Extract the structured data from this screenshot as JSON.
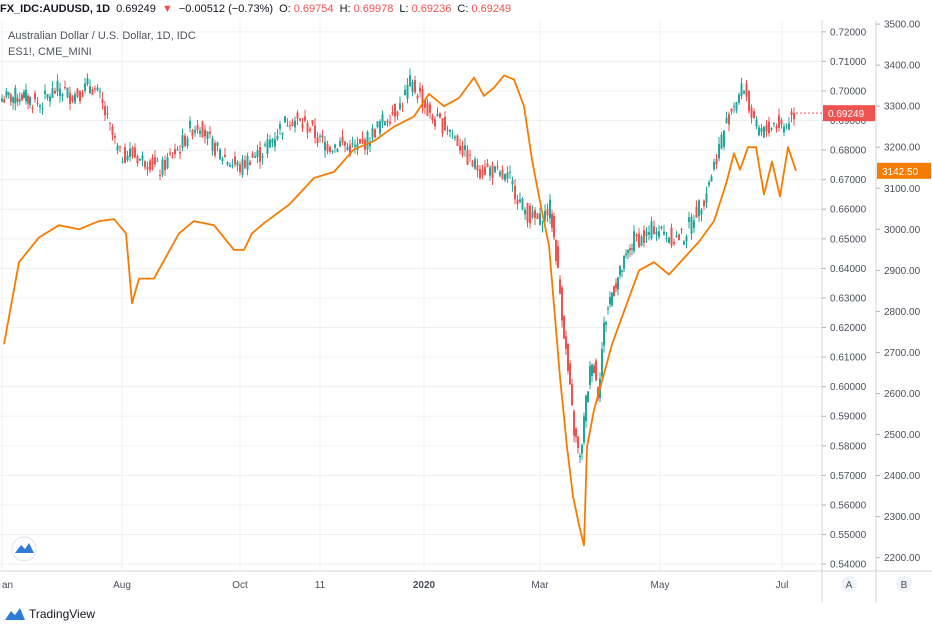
{
  "header": {
    "symbol": "FX_IDC:AUDUSD, 1D",
    "last": "0.69249",
    "change": "−0.00512 (−0.73%)",
    "open_label": "O:",
    "open": "0.69754",
    "high_label": "H:",
    "high": "0.69978",
    "low_label": "L:",
    "low": "0.69236",
    "close_label": "C:",
    "close": "0.69249",
    "down_arrow": "▼"
  },
  "legend": {
    "main": "Australian Dollar / U.S. Dollar, 1D, IDC",
    "compare": "ES1!, CME_MINI"
  },
  "brand": {
    "name": "TradingView"
  },
  "scale_buttons": [
    "A",
    "B"
  ],
  "colors": {
    "up": "#26a69a",
    "down": "#ef5350",
    "es_line": "#f57c00",
    "grid": "#eef0f4",
    "axis_text": "#4a4f5c"
  },
  "chart_data": {
    "type": "line",
    "title": "Australian Dollar / U.S. Dollar, 1D, IDC",
    "x_tick_labels": [
      "an",
      "Aug",
      "Oct",
      "11",
      "2020",
      "Mar",
      "May",
      "Jul"
    ],
    "left_axis": {
      "label": "AUDUSD",
      "ticks": [
        "0.72000",
        "0.71000",
        "0.70000",
        "0.69000",
        "0.68000",
        "0.67000",
        "0.66000",
        "0.65000",
        "0.64000",
        "0.63000",
        "0.62000",
        "0.61000",
        "0.60000",
        "0.59000",
        "0.58000",
        "0.57000",
        "0.56000",
        "0.55000",
        "0.54000"
      ],
      "ylim": [
        0.538,
        0.724
      ],
      "last_value_label": "0.69249"
    },
    "right_axis": {
      "label": "ES1!",
      "ticks": [
        "3500.00",
        "3400.00",
        "3300.00",
        "3200.00",
        "3100.00",
        "3000.00",
        "2900.00",
        "2800.00",
        "2700.00",
        "2600.00",
        "2500.00",
        "2400.00",
        "2300.00",
        "2200.00"
      ],
      "ylim": [
        2170,
        3510
      ],
      "last_value_label": "3142.50"
    },
    "series": [
      {
        "name": "Australian Dollar / U.S. Dollar, 1D, IDC",
        "style": "candles",
        "months": [
          "2019-06",
          "2019-07",
          "2019-08",
          "2019-09",
          "2019-10",
          "2019-11",
          "2019-12",
          "2020-01",
          "2020-02",
          "2020-03",
          "2020-04",
          "2020-05",
          "2020-06",
          "2020-07"
        ],
        "x": [
          0,
          20,
          28,
          38,
          48,
          58,
          68,
          78,
          88,
          98,
          108,
          118,
          128,
          138,
          148,
          158,
          168,
          178,
          188,
          198,
          208,
          218,
          228,
          238,
          248,
          258,
          268,
          278,
          288,
          298,
          308,
          318,
          328,
          338,
          348,
          358,
          368,
          378,
          388,
          398,
          408,
          418,
          428,
          438,
          448,
          458,
          468,
          478,
          488,
          498,
          508,
          518,
          528,
          538,
          548,
          554,
          560,
          566,
          572,
          578,
          584,
          590,
          596,
          602,
          608,
          614,
          620,
          626,
          632,
          642,
          652,
          662,
          672,
          682,
          692,
          702,
          712,
          722,
          732,
          742,
          752,
          762,
          772,
          782,
          792
        ],
        "close": [
          0.6975,
          0.6985,
          0.697,
          0.6955,
          0.699,
          0.701,
          0.6985,
          0.6995,
          0.7025,
          0.6975,
          0.687,
          0.678,
          0.679,
          0.677,
          0.676,
          0.673,
          0.6775,
          0.681,
          0.687,
          0.689,
          0.6825,
          0.679,
          0.676,
          0.674,
          0.6775,
          0.6785,
          0.683,
          0.6875,
          0.691,
          0.689,
          0.6875,
          0.683,
          0.6815,
          0.6825,
          0.6805,
          0.681,
          0.6845,
          0.689,
          0.692,
          0.695,
          0.7025,
          0.6985,
          0.691,
          0.689,
          0.687,
          0.6815,
          0.676,
          0.6735,
          0.6735,
          0.671,
          0.67,
          0.6625,
          0.657,
          0.656,
          0.6605,
          0.645,
          0.625,
          0.605,
          0.585,
          0.575,
          0.595,
          0.61,
          0.598,
          0.62,
          0.63,
          0.635,
          0.64,
          0.645,
          0.65,
          0.65,
          0.654,
          0.652,
          0.65,
          0.651,
          0.658,
          0.664,
          0.675,
          0.687,
          0.696,
          0.7015,
          0.688,
          0.686,
          0.689,
          0.688,
          0.6925
        ]
      },
      {
        "name": "ES1!, CME_MINI",
        "style": "line",
        "months": [
          "2019-06",
          "2019-07",
          "2019-08",
          "2019-09",
          "2019-10",
          "2019-11",
          "2019-12",
          "2020-01",
          "2020-02",
          "2020-03",
          "2020-04",
          "2020-05",
          "2020-06",
          "2020-07"
        ],
        "x": [
          0,
          15,
          35,
          55,
          75,
          95,
          110,
          122,
          128,
          135,
          150,
          175,
          190,
          210,
          230,
          240,
          248,
          260,
          285,
          310,
          330,
          350,
          370,
          390,
          410,
          425,
          440,
          455,
          470,
          480,
          490,
          500,
          510,
          520,
          528,
          535,
          545,
          556,
          563,
          569,
          575,
          580,
          583,
          590,
          598,
          608,
          620,
          635,
          650,
          665,
          680,
          695,
          710,
          722,
          730,
          736,
          744,
          752,
          760,
          768,
          776,
          784,
          792
        ],
        "y": [
          2720,
          2920,
          2980,
          3010,
          3000,
          3020,
          3025,
          2990,
          2820,
          2880,
          2880,
          2990,
          3020,
          3010,
          2950,
          2950,
          2990,
          3015,
          3060,
          3125,
          3140,
          3195,
          3215,
          3250,
          3275,
          3330,
          3300,
          3320,
          3370,
          3325,
          3345,
          3375,
          3365,
          3300,
          3170,
          3080,
          2960,
          2640,
          2470,
          2350,
          2280,
          2230,
          2470,
          2560,
          2630,
          2720,
          2800,
          2900,
          2920,
          2890,
          2930,
          2970,
          3020,
          3110,
          3185,
          3145,
          3200,
          3200,
          3085,
          3165,
          3080,
          3200,
          3142.5
        ]
      }
    ],
    "grid": true,
    "legend_position": "top-left"
  }
}
